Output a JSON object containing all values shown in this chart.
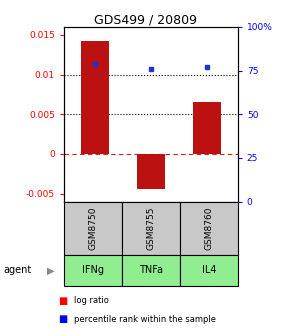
{
  "title": "GDS499 / 20809",
  "samples": [
    "GSM8750",
    "GSM8755",
    "GSM8760"
  ],
  "agents": [
    "IFNg",
    "TNFa",
    "IL4"
  ],
  "log_ratios": [
    0.0142,
    -0.0044,
    0.0065
  ],
  "percentile_ranks": [
    79,
    76,
    77
  ],
  "bar_color": "#bb1111",
  "dot_color": "#2233cc",
  "ylim_left": [
    -0.006,
    0.016
  ],
  "ylim_right": [
    0,
    100
  ],
  "yticks_left": [
    -0.005,
    0,
    0.005,
    0.01,
    0.015
  ],
  "yticks_right": [
    0,
    25,
    50,
    75,
    100
  ],
  "ytick_labels_left": [
    "-0.005",
    "0",
    "0.005",
    "0.01",
    "0.015"
  ],
  "ytick_labels_right": [
    "0",
    "25",
    "50",
    "75",
    "100%"
  ],
  "hlines": [
    0.01,
    0.005
  ],
  "zero_line_color": "#cc2222",
  "sample_box_color": "#c8c8c8",
  "agent_box_color": "#90ee90",
  "bar_width": 0.5,
  "fig_width": 2.9,
  "fig_height": 3.36,
  "dpi": 100
}
